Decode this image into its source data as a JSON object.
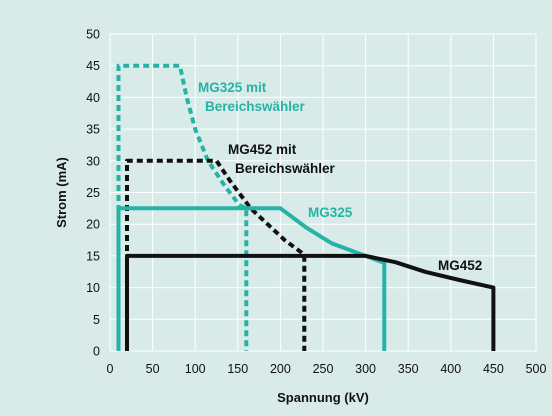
{
  "chart_data": {
    "type": "line",
    "title": "",
    "xlabel": "Spannung (kV)",
    "ylabel": "Strom (mA)",
    "xlim": [
      0,
      500
    ],
    "ylim": [
      0,
      50
    ],
    "x_ticks": [
      0,
      50,
      100,
      150,
      200,
      250,
      300,
      350,
      400,
      450,
      500
    ],
    "y_ticks": [
      0,
      5,
      10,
      15,
      20,
      25,
      30,
      35,
      40,
      45,
      50
    ],
    "grid": true,
    "legend": "labels on chart",
    "colors": {
      "teal": "#25b3a6",
      "black": "#111111",
      "background": "#d8ebe9",
      "grid": "#ffffff"
    },
    "series": [
      {
        "name": "MG325 mit Bereichswähler",
        "label_lines": [
          "MG325 mit",
          "Bereichswähler"
        ],
        "color": "#25b3a6",
        "dashed": true,
        "points": [
          [
            10,
            0
          ],
          [
            10,
            45
          ],
          [
            82,
            45
          ],
          [
            90,
            40
          ],
          [
            100,
            35
          ],
          [
            115,
            30
          ],
          [
            135,
            26
          ],
          [
            152,
            23
          ],
          [
            160,
            22.5
          ],
          [
            160,
            0
          ]
        ]
      },
      {
        "name": "MG452 mit Bereichswähler",
        "label_lines": [
          "MG452 mit",
          "Bereichswähler"
        ],
        "color": "#111111",
        "dashed": true,
        "points": [
          [
            20,
            0
          ],
          [
            20,
            30
          ],
          [
            125,
            30
          ],
          [
            140,
            27
          ],
          [
            165,
            22.5
          ],
          [
            185,
            20
          ],
          [
            205,
            17.5
          ],
          [
            225,
            15.5
          ],
          [
            228,
            15
          ],
          [
            228,
            0
          ]
        ]
      },
      {
        "name": "MG325",
        "label_lines": [
          "MG325"
        ],
        "color": "#25b3a6",
        "dashed": false,
        "points": [
          [
            10,
            0
          ],
          [
            10,
            22.5
          ],
          [
            200,
            22.5
          ],
          [
            230,
            19.5
          ],
          [
            260,
            17
          ],
          [
            290,
            15.5
          ],
          [
            320,
            14
          ],
          [
            322,
            14
          ],
          [
            322,
            0
          ]
        ]
      },
      {
        "name": "MG452",
        "label_lines": [
          "MG452"
        ],
        "color": "#111111",
        "dashed": false,
        "points": [
          [
            20,
            0
          ],
          [
            20,
            15
          ],
          [
            300,
            15
          ],
          [
            335,
            14
          ],
          [
            370,
            12.5
          ],
          [
            410,
            11.2
          ],
          [
            450,
            10
          ],
          [
            450,
            0
          ]
        ]
      }
    ]
  }
}
